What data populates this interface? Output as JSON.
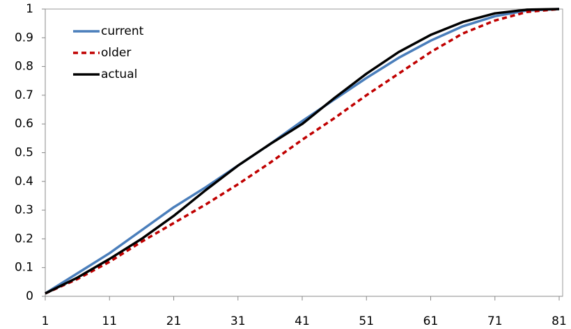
{
  "chart_data": {
    "type": "line",
    "x": [
      1,
      6,
      11,
      16,
      21,
      26,
      31,
      36,
      41,
      46,
      51,
      56,
      61,
      66,
      71,
      76,
      81
    ],
    "series": [
      {
        "name": "current",
        "color": "#4a7ebb",
        "dash": false,
        "values": [
          0.01,
          0.08,
          0.15,
          0.23,
          0.31,
          0.38,
          0.455,
          0.53,
          0.61,
          0.685,
          0.76,
          0.83,
          0.89,
          0.94,
          0.975,
          0.995,
          1
        ]
      },
      {
        "name": "older",
        "color": "#c00000",
        "dash": true,
        "values": [
          0.01,
          0.06,
          0.12,
          0.19,
          0.255,
          0.32,
          0.39,
          0.465,
          0.545,
          0.62,
          0.7,
          0.775,
          0.85,
          0.915,
          0.96,
          0.99,
          1
        ]
      },
      {
        "name": "actual",
        "color": "#000000",
        "dash": false,
        "values": [
          0.01,
          0.065,
          0.13,
          0.2,
          0.28,
          0.37,
          0.455,
          0.53,
          0.6,
          0.69,
          0.775,
          0.85,
          0.91,
          0.955,
          0.985,
          0.998,
          1
        ]
      }
    ],
    "xlim": [
      1,
      81
    ],
    "xticks": [
      1,
      11,
      21,
      31,
      41,
      51,
      61,
      71,
      81
    ],
    "ylim": [
      0,
      1
    ],
    "yticks": [
      0,
      0.1,
      0.2,
      0.3,
      0.4,
      0.5,
      0.6,
      0.7,
      0.8,
      0.9,
      1
    ],
    "legend": "upper left"
  }
}
